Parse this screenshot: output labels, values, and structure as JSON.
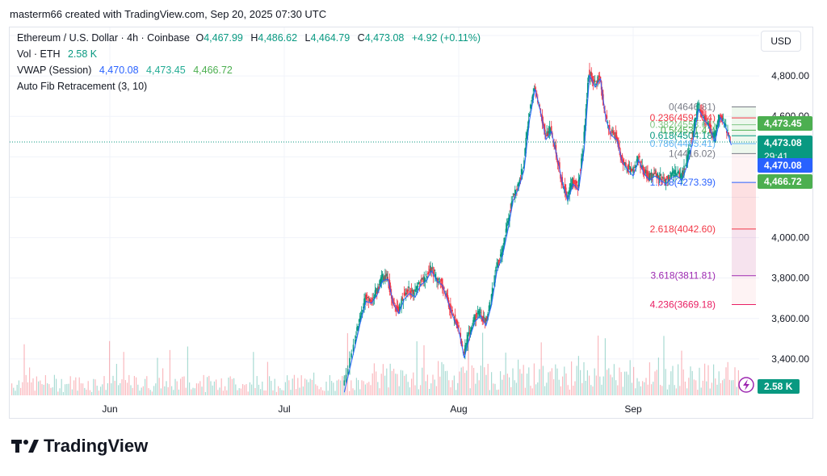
{
  "header": {
    "published": "masterm66 created with TradingView.com, Sep 20, 2025 07:30 UTC"
  },
  "legend": {
    "symbol": "Ethereum / U.S. Dollar · 4h · Coinbase",
    "o_label": "O",
    "o_value": "4,467.99",
    "h_label": "H",
    "h_value": "4,486.62",
    "l_label": "L",
    "l_value": "4,464.79",
    "c_label": "C",
    "c_value": "4,473.08",
    "change": "+4.92 (+0.11%)",
    "vol_label": "Vol · ETH",
    "vol_value": "2.58 K",
    "vwap_label": "VWAP (Session)",
    "vwap_v1": "4,470.08",
    "vwap_v2": "4,473.45",
    "vwap_v3": "4,466.72",
    "fib_label": "Auto Fib Retracement (3, 10)"
  },
  "currency_button": "USD",
  "brand": {
    "name": "TradingView"
  },
  "colors": {
    "up": "#089981",
    "down": "#f23645",
    "vwap": "#2962ff",
    "fib_red": "#f23645",
    "fib_purple": "#9c27b0",
    "fib_pink": "#e91e63",
    "fib_gray": "#787b86",
    "fib_green": "#4caf50",
    "fib_teal": "#089981",
    "fib_blue": "#2196f3"
  },
  "chart_data": {
    "type": "candlestick",
    "title": "Ethereum / U.S. Dollar · 4h · Coinbase",
    "x_labels": [
      "Jun",
      "Jul",
      "Aug",
      "Sep"
    ],
    "y_ticks": [
      3400,
      3600,
      3800,
      4000,
      4200,
      4400,
      4600,
      4800,
      5000
    ],
    "y_tick_labels": [
      "3,400.00",
      "3,600.00",
      "3,800.00",
      "4,000.00",
      "",
      "",
      "4,600.00",
      "4,800.00",
      ""
    ],
    "ylim": [
      3220,
      5040
    ],
    "price_path": [
      {
        "day": 43,
        "price": 3250
      },
      {
        "day": 45,
        "price": 3480
      },
      {
        "day": 46,
        "price": 3600
      },
      {
        "day": 47,
        "price": 3700
      },
      {
        "day": 48,
        "price": 3690
      },
      {
        "day": 49,
        "price": 3730
      },
      {
        "day": 50,
        "price": 3800
      },
      {
        "day": 51,
        "price": 3810
      },
      {
        "day": 52,
        "price": 3690
      },
      {
        "day": 53,
        "price": 3640
      },
      {
        "day": 54,
        "price": 3710
      },
      {
        "day": 55,
        "price": 3740
      },
      {
        "day": 56,
        "price": 3720
      },
      {
        "day": 57,
        "price": 3780
      },
      {
        "day": 58,
        "price": 3800
      },
      {
        "day": 59,
        "price": 3850
      },
      {
        "day": 60,
        "price": 3800
      },
      {
        "day": 61,
        "price": 3780
      },
      {
        "day": 62,
        "price": 3700
      },
      {
        "day": 63,
        "price": 3620
      },
      {
        "day": 64,
        "price": 3560
      },
      {
        "day": 65,
        "price": 3420
      },
      {
        "day": 66,
        "price": 3520
      },
      {
        "day": 67,
        "price": 3600
      },
      {
        "day": 68,
        "price": 3630
      },
      {
        "day": 69,
        "price": 3580
      },
      {
        "day": 70,
        "price": 3680
      },
      {
        "day": 71,
        "price": 3850
      },
      {
        "day": 72,
        "price": 3920
      },
      {
        "day": 73,
        "price": 4050
      },
      {
        "day": 74,
        "price": 4200
      },
      {
        "day": 75,
        "price": 4260
      },
      {
        "day": 76,
        "price": 4350
      },
      {
        "day": 77,
        "price": 4600
      },
      {
        "day": 78,
        "price": 4750
      },
      {
        "day": 79,
        "price": 4640
      },
      {
        "day": 80,
        "price": 4500
      },
      {
        "day": 81,
        "price": 4540
      },
      {
        "day": 82,
        "price": 4420
      },
      {
        "day": 83,
        "price": 4290
      },
      {
        "day": 84,
        "price": 4200
      },
      {
        "day": 85,
        "price": 4280
      },
      {
        "day": 86,
        "price": 4250
      },
      {
        "day": 87,
        "price": 4450
      },
      {
        "day": 88,
        "price": 4820
      },
      {
        "day": 89,
        "price": 4760
      },
      {
        "day": 90,
        "price": 4800
      },
      {
        "day": 91,
        "price": 4600
      },
      {
        "day": 92,
        "price": 4520
      },
      {
        "day": 93,
        "price": 4500
      },
      {
        "day": 94,
        "price": 4390
      },
      {
        "day": 95,
        "price": 4350
      },
      {
        "day": 96,
        "price": 4320
      },
      {
        "day": 97,
        "price": 4400
      },
      {
        "day": 98,
        "price": 4330
      },
      {
        "day": 99,
        "price": 4300
      },
      {
        "day": 100,
        "price": 4320
      },
      {
        "day": 101,
        "price": 4300
      },
      {
        "day": 102,
        "price": 4280
      },
      {
        "day": 103,
        "price": 4310
      },
      {
        "day": 104,
        "price": 4320
      },
      {
        "day": 105,
        "price": 4300
      },
      {
        "day": 106,
        "price": 4380
      },
      {
        "day": 107,
        "price": 4500
      },
      {
        "day": 108,
        "price": 4650
      },
      {
        "day": 109,
        "price": 4600
      },
      {
        "day": 110,
        "price": 4560
      },
      {
        "day": 111,
        "price": 4490
      },
      {
        "day": 112,
        "price": 4610
      },
      {
        "day": 113,
        "price": 4560
      },
      {
        "day": 114,
        "price": 4473
      }
    ],
    "volume_note": "Vol · ETH 2.58 K",
    "fib_levels": [
      {
        "ratio": "0",
        "label": "0(4646.81)",
        "price": 4646.81,
        "color": "#787b86"
      },
      {
        "ratio": "0.236",
        "label": "0.236(4592.34)",
        "price": 4592.34,
        "color": "#f23645"
      },
      {
        "ratio": "0.382",
        "label": "0.382(4558.64)",
        "price": 4558.64,
        "color": "#81c784"
      },
      {
        "ratio": "0.5",
        "label": "0.5(4531.41)",
        "price": 4531.41,
        "color": "#4caf50"
      },
      {
        "ratio": "0.618",
        "label": "0.618(4504.18)",
        "price": 4504.18,
        "color": "#089981"
      },
      {
        "ratio": "0.786",
        "label": "0.786(4465.41)",
        "price": 4465.41,
        "color": "#64b5f6"
      },
      {
        "ratio": "1",
        "label": "1(4416.02)",
        "price": 4416.02,
        "color": "#787b86"
      },
      {
        "ratio": "1.618",
        "label": "1.618(4273.39)",
        "price": 4273.39,
        "color": "#2962ff"
      },
      {
        "ratio": "2.618",
        "label": "2.618(4042.60)",
        "price": 4042.6,
        "color": "#f23645"
      },
      {
        "ratio": "3.618",
        "label": "3.618(3811.81)",
        "price": 3811.81,
        "color": "#9c27b0"
      },
      {
        "ratio": "4.236",
        "label": "4.236(3669.18)",
        "price": 3669.18,
        "color": "#e91e63"
      }
    ],
    "price_tags": [
      {
        "value": "4,473.45",
        "price": 4473.45,
        "color": "#4caf50",
        "row": -1
      },
      {
        "value": "4,473.08",
        "price": 4473.08,
        "color": "#089981",
        "row": 0,
        "sub": "29:41"
      },
      {
        "value": "4,470.08",
        "price": 4470.08,
        "color": "#2962ff",
        "row": 1
      },
      {
        "value": "4,466.72",
        "price": 4466.72,
        "color": "#4caf50",
        "row": 2
      }
    ],
    "volume_tag": {
      "value": "2.58 K",
      "color": "#089981"
    },
    "last_price": 4473.08
  }
}
